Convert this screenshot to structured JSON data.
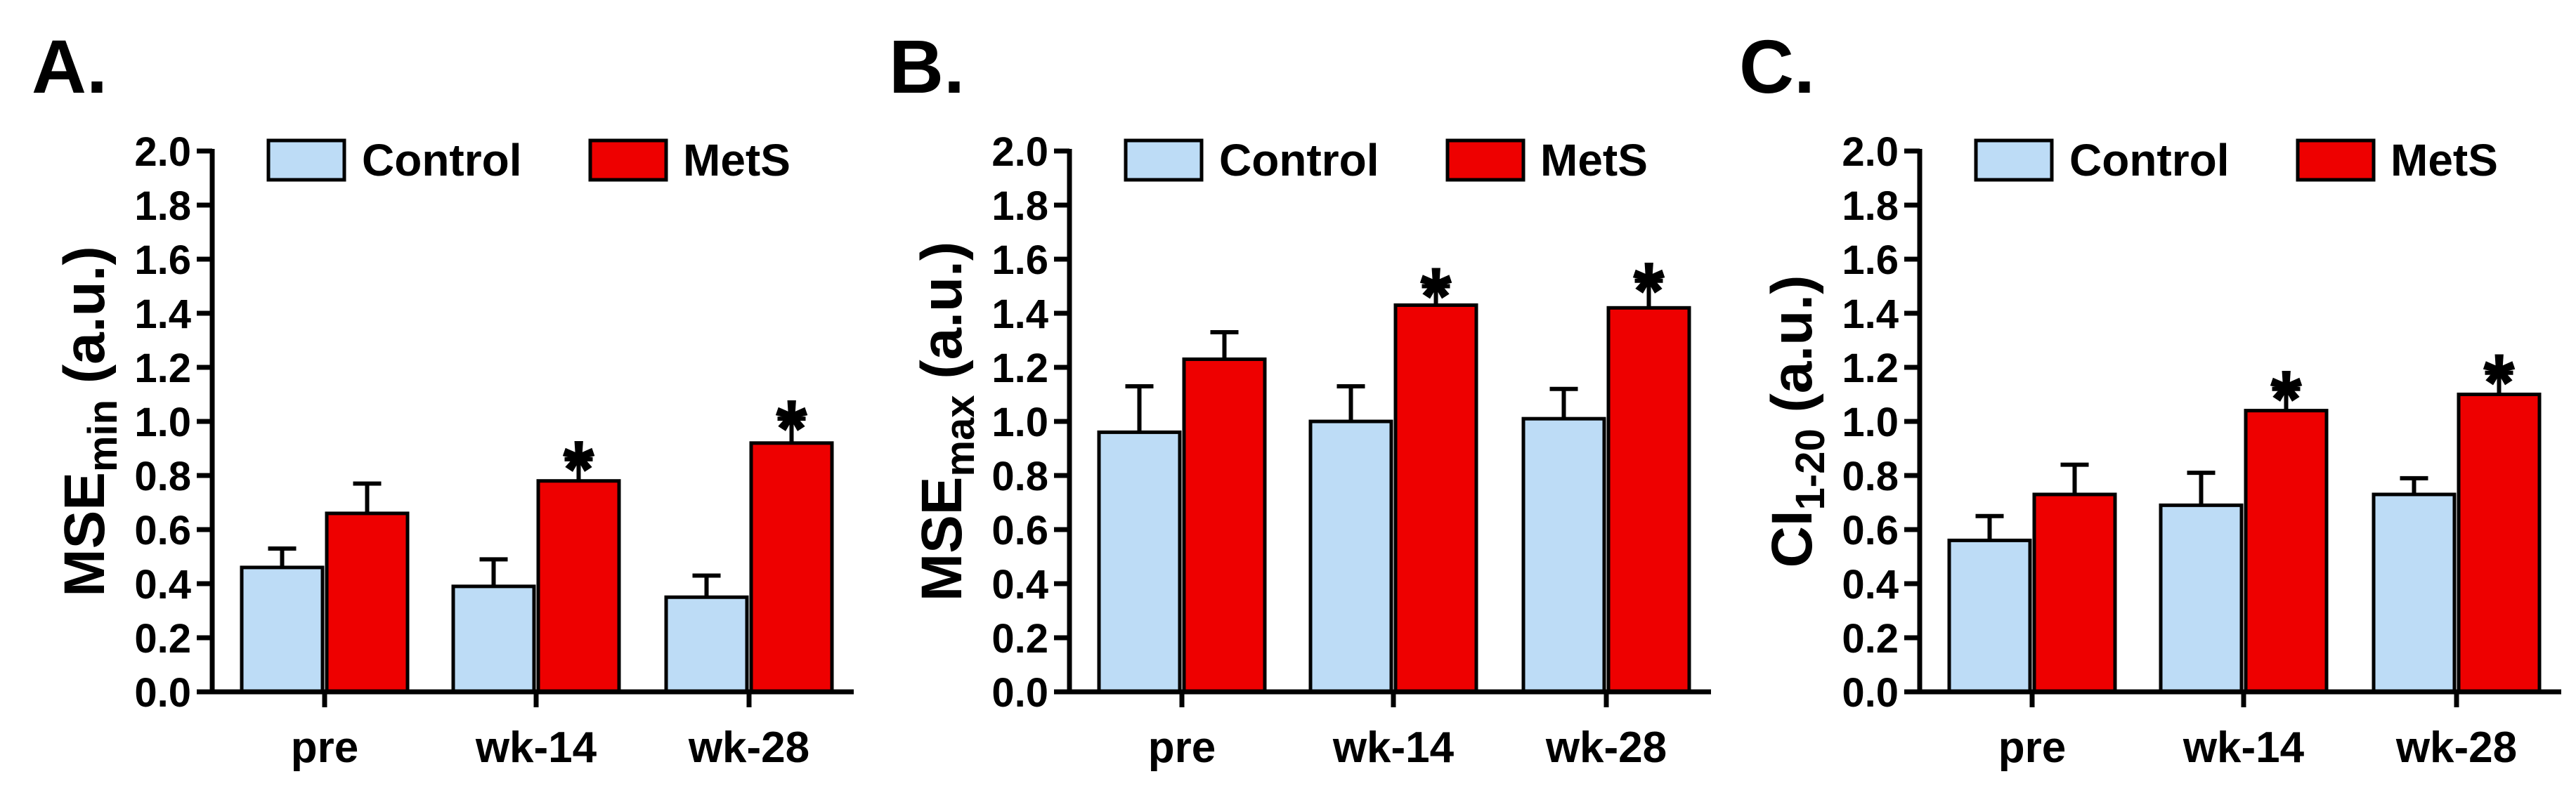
{
  "colors": {
    "control": "#BDDCF6",
    "mets": "#EE0000",
    "axis": "#000000"
  },
  "chart_data": [
    {
      "type": "bar",
      "panel_label": "A.",
      "ylabel_main": "MSE",
      "ylabel_sub": "min",
      "ylabel_unit": " (a.u.)",
      "categories": [
        "pre",
        "wk-14",
        "wk-28"
      ],
      "ylim": [
        0,
        2.0
      ],
      "yticks": [
        "0.0",
        "0.2",
        "0.4",
        "0.6",
        "0.8",
        "1.0",
        "1.2",
        "1.4",
        "1.6",
        "1.8",
        "2.0"
      ],
      "legend": [
        "Control",
        "MetS"
      ],
      "series": [
        {
          "name": "Control",
          "values": [
            0.46,
            0.39,
            0.35
          ],
          "errors": [
            0.07,
            0.1,
            0.08
          ],
          "significant": [
            false,
            false,
            false
          ]
        },
        {
          "name": "MetS",
          "values": [
            0.66,
            0.78,
            0.92
          ],
          "errors": [
            0.11,
            0.08,
            0.09
          ],
          "significant": [
            false,
            true,
            true
          ]
        }
      ],
      "significance_marker": "*"
    },
    {
      "type": "bar",
      "panel_label": "B.",
      "ylabel_main": "MSE",
      "ylabel_sub": "max",
      "ylabel_unit": " (a.u.)",
      "categories": [
        "pre",
        "wk-14",
        "wk-28"
      ],
      "ylim": [
        0,
        2.0
      ],
      "yticks": [
        "0.0",
        "0.2",
        "0.4",
        "0.6",
        "0.8",
        "1.0",
        "1.2",
        "1.4",
        "1.6",
        "1.8",
        "2.0"
      ],
      "legend": [
        "Control",
        "MetS"
      ],
      "series": [
        {
          "name": "Control",
          "values": [
            0.96,
            1.0,
            1.01
          ],
          "errors": [
            0.17,
            0.13,
            0.11
          ],
          "significant": [
            false,
            false,
            false
          ]
        },
        {
          "name": "MetS",
          "values": [
            1.23,
            1.43,
            1.42
          ],
          "errors": [
            0.1,
            0.07,
            0.1
          ],
          "significant": [
            false,
            true,
            true
          ]
        }
      ],
      "significance_marker": "*"
    },
    {
      "type": "bar",
      "panel_label": "C.",
      "ylabel_main": "CI",
      "ylabel_sub": "1-20",
      "ylabel_unit": " (a.u.)",
      "categories": [
        "pre",
        "wk-14",
        "wk-28"
      ],
      "ylim": [
        0,
        2.0
      ],
      "yticks": [
        "0.0",
        "0.2",
        "0.4",
        "0.6",
        "0.8",
        "1.0",
        "1.2",
        "1.4",
        "1.6",
        "1.8",
        "2.0"
      ],
      "legend": [
        "Control",
        "MetS"
      ],
      "series": [
        {
          "name": "Control",
          "values": [
            0.56,
            0.69,
            0.73
          ],
          "errors": [
            0.09,
            0.12,
            0.06
          ],
          "significant": [
            false,
            false,
            false
          ]
        },
        {
          "name": "MetS",
          "values": [
            0.73,
            1.04,
            1.1
          ],
          "errors": [
            0.11,
            0.08,
            0.08
          ],
          "significant": [
            false,
            true,
            true
          ]
        }
      ],
      "significance_marker": "*"
    }
  ]
}
